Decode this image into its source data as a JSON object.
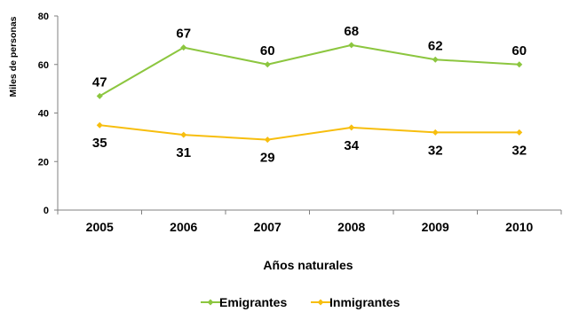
{
  "chart_data": {
    "type": "line",
    "xlabel": "Años naturales",
    "ylabel": "Miles de personas",
    "ylim": [
      0,
      80
    ],
    "yticks": [
      0,
      20,
      40,
      60,
      80
    ],
    "categories": [
      "2005",
      "2006",
      "2007",
      "2008",
      "2009",
      "2010"
    ],
    "grid": false,
    "legend_position": "bottom",
    "series": [
      {
        "name": "Emigrantes",
        "values": [
          47,
          67,
          60,
          68,
          62,
          60
        ],
        "color": "#8CC63F",
        "label_position": "above"
      },
      {
        "name": "Inmigrantes",
        "values": [
          35,
          31,
          29,
          34,
          32,
          32
        ],
        "color": "#F7BE0E",
        "label_position": "below"
      }
    ]
  }
}
